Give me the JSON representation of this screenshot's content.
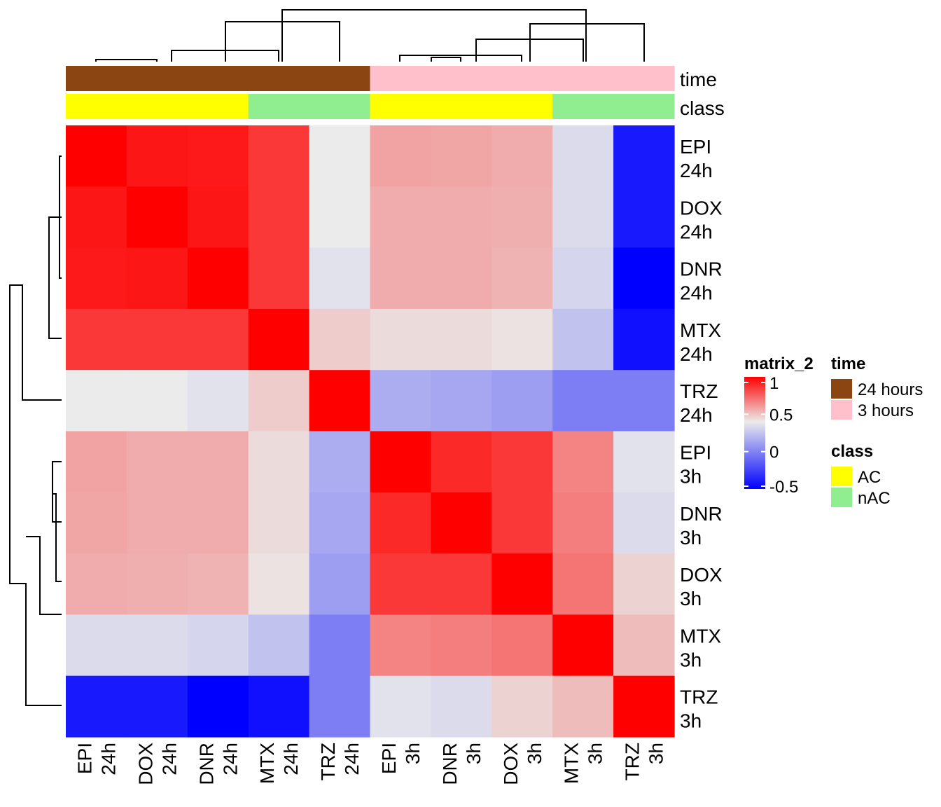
{
  "chart_data": {
    "type": "heatmap",
    "rows": [
      "EPI 24h",
      "DOX 24h",
      "DNR 24h",
      "MTX 24h",
      "TRZ 24h",
      "EPI 3h",
      "DNR 3h",
      "DOX 3h",
      "MTX 3h",
      "TRZ 3h"
    ],
    "columns": [
      "EPI 24h",
      "DOX 24h",
      "DNR 24h",
      "MTX 24h",
      "TRZ 24h",
      "EPI 3h",
      "DNR 3h",
      "DOX 3h",
      "MTX 3h",
      "TRZ 3h"
    ],
    "values": [
      [
        1.0,
        0.93,
        0.92,
        0.82,
        0.25,
        0.48,
        0.47,
        0.45,
        0.2,
        -0.42
      ],
      [
        0.93,
        1.0,
        0.93,
        0.82,
        0.25,
        0.45,
        0.45,
        0.44,
        0.2,
        -0.42
      ],
      [
        0.92,
        0.93,
        1.0,
        0.82,
        0.22,
        0.45,
        0.45,
        0.43,
        0.18,
        -0.5
      ],
      [
        0.82,
        0.82,
        0.82,
        1.0,
        0.35,
        0.3,
        0.3,
        0.28,
        0.12,
        -0.45
      ],
      [
        0.25,
        0.25,
        0.22,
        0.35,
        1.0,
        0.05,
        0.03,
        0.0,
        -0.1,
        -0.1
      ],
      [
        0.48,
        0.45,
        0.45,
        0.3,
        0.05,
        1.0,
        0.87,
        0.82,
        0.58,
        0.22
      ],
      [
        0.47,
        0.45,
        0.45,
        0.3,
        0.03,
        0.87,
        1.0,
        0.82,
        0.6,
        0.2
      ],
      [
        0.45,
        0.44,
        0.43,
        0.28,
        0.0,
        0.82,
        0.82,
        1.0,
        0.63,
        0.33
      ],
      [
        0.2,
        0.2,
        0.18,
        0.12,
        -0.1,
        0.58,
        0.6,
        0.63,
        1.0,
        0.4
      ],
      [
        -0.42,
        -0.42,
        -0.5,
        -0.45,
        -0.1,
        0.22,
        0.2,
        0.33,
        0.4,
        1.0
      ]
    ],
    "color_scale": {
      "stops": [
        {
          "value": -0.5,
          "color": "#0000ff"
        },
        {
          "value": 0.25,
          "color": "#ebebeb"
        },
        {
          "value": 1,
          "color": "#ff0000"
        }
      ],
      "ticks": [
        "1",
        "0.5",
        "0",
        "-0.5"
      ]
    },
    "annotations": [
      {
        "name": "time",
        "values": [
          "24 hours",
          "24 hours",
          "24 hours",
          "24 hours",
          "24 hours",
          "3 hours",
          "3 hours",
          "3 hours",
          "3 hours",
          "3 hours"
        ],
        "legend": [
          {
            "label": "24 hours",
            "color": "#8b4513"
          },
          {
            "label": "3 hours",
            "color": "#ffc0cb"
          }
        ]
      },
      {
        "name": "class",
        "values": [
          "AC",
          "AC",
          "AC",
          "nAC",
          "nAC",
          "AC",
          "AC",
          "AC",
          "nAC",
          "nAC"
        ],
        "legend": [
          {
            "label": "AC",
            "color": "#ffff00"
          },
          {
            "label": "nAC",
            "color": "#90ee90"
          }
        ]
      }
    ],
    "legend_title": "matrix_2"
  }
}
